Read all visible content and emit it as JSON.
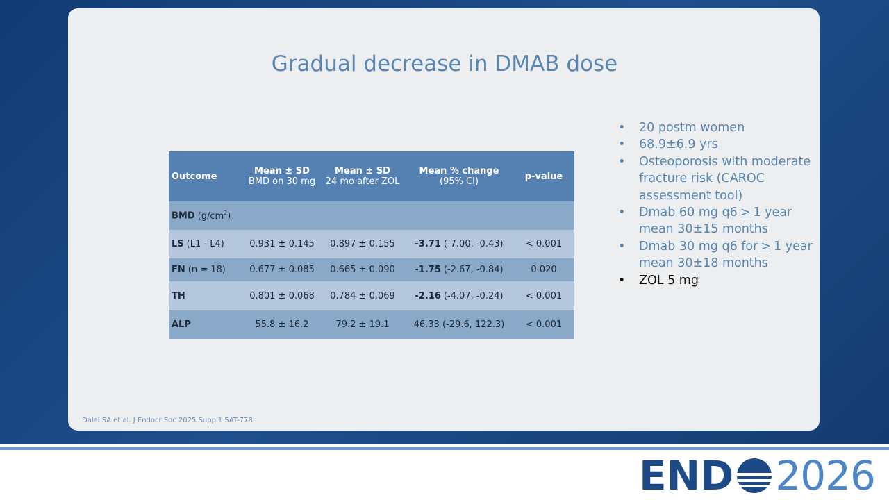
{
  "slide": {
    "title": "Gradual decrease in DMAB dose",
    "citation": "Dalal SA et al. J Endocr Soc 2025 Suppl1 SAT-778"
  },
  "table": {
    "header": [
      [
        "Outcome"
      ],
      [
        "Mean ± SD",
        "BMD on 30 mg"
      ],
      [
        "Mean ± SD",
        "24 mo after ZOL"
      ],
      [
        "Mean % change",
        "(95% CI)"
      ],
      [
        "p-value"
      ]
    ],
    "rows": [
      [
        {
          "bold": "BMD",
          "text": "(g/cm",
          "sup": "2",
          "after": ")"
        }
      ],
      [
        {
          "bold": "LS",
          "text": "(L1 - L4)"
        },
        "0.931 ± 0.145",
        "0.897 ± 0.155",
        {
          "bold": "-3.71",
          "text": "(-7.00, -0.43)"
        },
        "< 0.001"
      ],
      [
        {
          "bold": "FN",
          "text": "(n = 18)"
        },
        "0.677 ± 0.085",
        "0.665 ± 0.090",
        {
          "bold": "-1.75",
          "text": "(-2.67, -0.84)"
        },
        "0.020"
      ],
      [
        {
          "bold": "TH"
        },
        "0.801 ± 0.068",
        "0.784 ± 0.069",
        {
          "bold": "-2.16",
          "text": "(-4.07, -0.24)"
        },
        "< 0.001"
      ],
      [
        {
          "bold": "ALP"
        },
        "55.8 ± 16.2",
        "79.2 ± 19.1",
        "46.33 (-29.6, 122.3)",
        "< 0.001"
      ]
    ]
  },
  "bullets": [
    {
      "text": "20 postm women"
    },
    {
      "text": "68.9±6.9 yrs"
    },
    {
      "text": "Osteoporosis with moderate fracture risk (CAROC assessment tool)"
    },
    {
      "before": "Dmab 60 mg q6",
      "underlined": ">",
      "after": "1 year mean 30±15 months"
    },
    {
      "before": "Dmab 30 mg q6 for",
      "underlined": ">",
      "after": "1 year mean 30±18 months"
    },
    {
      "text": "ZOL 5 mg"
    }
  ],
  "logo": {
    "left": "END",
    "right": "2026"
  }
}
